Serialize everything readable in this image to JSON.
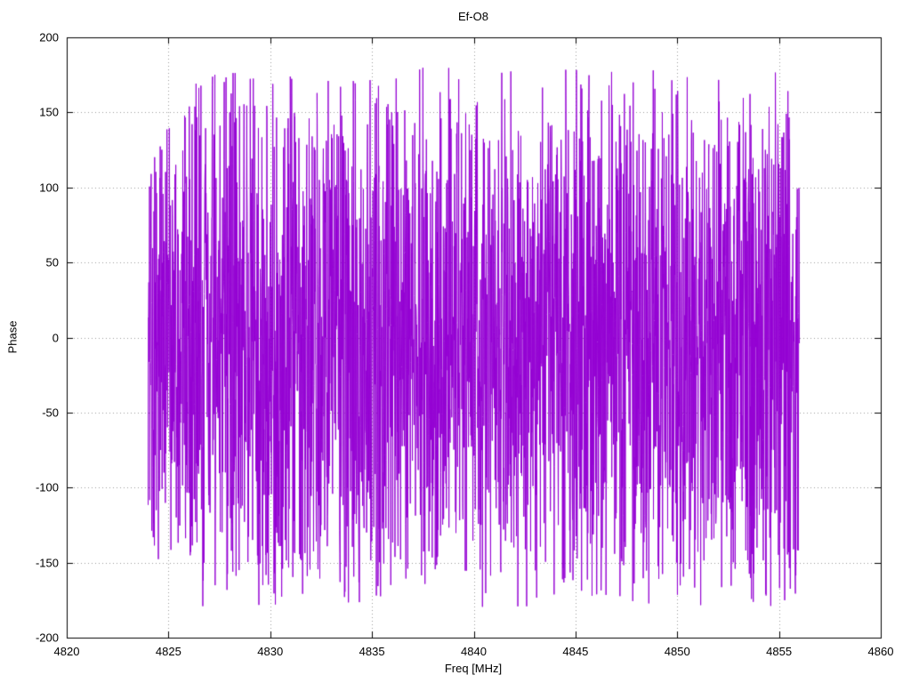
{
  "figure": {
    "background": "#ffffff",
    "text_color": "#000000"
  },
  "chart_data": {
    "type": "line",
    "title": "Ef-O8",
    "xlabel": "Freq [MHz]",
    "ylabel": "Phase",
    "xlim": [
      4820,
      4860
    ],
    "ylim": [
      -200,
      200
    ],
    "x_ticks": [
      4820,
      4825,
      4830,
      4835,
      4840,
      4845,
      4850,
      4855,
      4860
    ],
    "y_ticks": [
      -200,
      -150,
      -100,
      -50,
      0,
      50,
      100,
      150,
      200
    ],
    "grid": true,
    "grid_color": "#9a9a9a",
    "axis_color": "#000000",
    "legend": "none",
    "series": [
      {
        "name": "Ef-O8 phase",
        "color": "#9400d3",
        "x_start": 4824.0,
        "x_end": 4856.0,
        "points": 2800,
        "y_peak": 180,
        "distribution": "wrapped-phase-noise",
        "seed": 1337,
        "description": "Dense wrapped fringe-phase noise filling -180 to +180 deg between 4824 and 4856 MHz"
      }
    ]
  }
}
